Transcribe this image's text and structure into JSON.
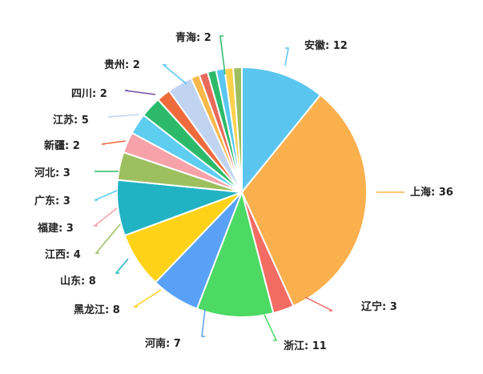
{
  "chart_data": {
    "type": "pie",
    "title": "",
    "order": "clockwise",
    "slices": [
      {
        "name": "安徽",
        "value": 12,
        "label": "安徽: 12",
        "color": "#5ac6f0"
      },
      {
        "name": "上海",
        "value": 36,
        "label": "上海: 36",
        "color": "#fbb04e"
      },
      {
        "name": "辽宁",
        "value": 3,
        "label": "辽宁: 3",
        "color": "#f26c64"
      },
      {
        "name": "浙江",
        "value": 11,
        "label": "浙江: 11",
        "color": "#4cd964"
      },
      {
        "name": "河南",
        "value": 7,
        "label": "河南: 7",
        "color": "#59a1f7"
      },
      {
        "name": "黑龙江",
        "value": 8,
        "label": "黑龙江: 8",
        "color": "#ffd21a"
      },
      {
        "name": "山东",
        "value": 8,
        "label": "山东: 8",
        "color": "#21b3c4"
      },
      {
        "name": "江西",
        "value": 4,
        "label": "江西: 4",
        "color": "#9dbf5e"
      },
      {
        "name": "福建",
        "value": 3,
        "label": "福建: 3",
        "color": "#f7a1a8"
      },
      {
        "name": "广东",
        "value": 3,
        "label": "广东: 3",
        "color": "#5dcdf0"
      },
      {
        "name": "河北",
        "value": 3,
        "label": "河北: 3",
        "color": "#2cba6a"
      },
      {
        "name": "新疆",
        "value": 2,
        "label": "新疆: 2",
        "color": "#ef6b3c"
      },
      {
        "name": "江苏",
        "value": 5,
        "label": "江苏: 5",
        "color": "#c0d4f2"
      },
      {
        "name": "四川",
        "value": 2,
        "label": "四川: 2",
        "color": "#6f4ea8"
      },
      {
        "name": "贵州",
        "value": 2,
        "label": "贵州: 2",
        "color": "#5ac6f0"
      },
      {
        "name": "青海",
        "value": 2,
        "label": "青海: 2",
        "color": "#2cba6a"
      }
    ]
  }
}
